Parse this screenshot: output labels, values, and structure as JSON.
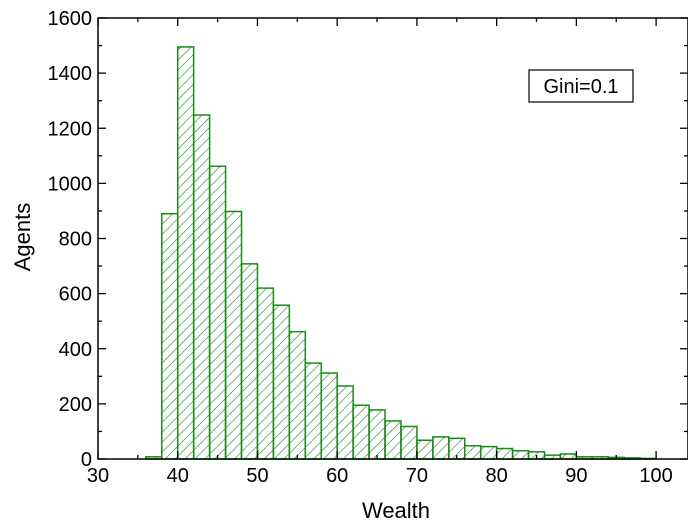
{
  "chart_data": {
    "type": "bar",
    "xlabel": "Wealth",
    "ylabel": "Agents",
    "xlim": [
      30,
      104
    ],
    "ylim": [
      0,
      1600
    ],
    "x_ticks": [
      30,
      40,
      50,
      60,
      70,
      80,
      90,
      100
    ],
    "y_ticks": [
      0,
      200,
      400,
      600,
      800,
      1000,
      1200,
      1400,
      1600
    ],
    "bin_width": 2,
    "bins": [
      {
        "x": 37,
        "y": 8
      },
      {
        "x": 39,
        "y": 890
      },
      {
        "x": 41,
        "y": 1495
      },
      {
        "x": 43,
        "y": 1248
      },
      {
        "x": 45,
        "y": 1062
      },
      {
        "x": 47,
        "y": 898
      },
      {
        "x": 49,
        "y": 708
      },
      {
        "x": 51,
        "y": 620
      },
      {
        "x": 53,
        "y": 558
      },
      {
        "x": 55,
        "y": 462
      },
      {
        "x": 57,
        "y": 348
      },
      {
        "x": 59,
        "y": 312
      },
      {
        "x": 61,
        "y": 265
      },
      {
        "x": 63,
        "y": 195
      },
      {
        "x": 65,
        "y": 178
      },
      {
        "x": 67,
        "y": 138
      },
      {
        "x": 69,
        "y": 118
      },
      {
        "x": 71,
        "y": 68
      },
      {
        "x": 73,
        "y": 80
      },
      {
        "x": 75,
        "y": 75
      },
      {
        "x": 77,
        "y": 48
      },
      {
        "x": 79,
        "y": 45
      },
      {
        "x": 81,
        "y": 38
      },
      {
        "x": 83,
        "y": 30
      },
      {
        "x": 85,
        "y": 26
      },
      {
        "x": 87,
        "y": 14
      },
      {
        "x": 89,
        "y": 18
      },
      {
        "x": 91,
        "y": 8
      },
      {
        "x": 93,
        "y": 8
      },
      {
        "x": 95,
        "y": 6
      },
      {
        "x": 97,
        "y": 4
      },
      {
        "x": 99,
        "y": 2
      }
    ],
    "bar_color": "#1a8a1a",
    "annotation": "Gini=0.1",
    "grid": false
  }
}
